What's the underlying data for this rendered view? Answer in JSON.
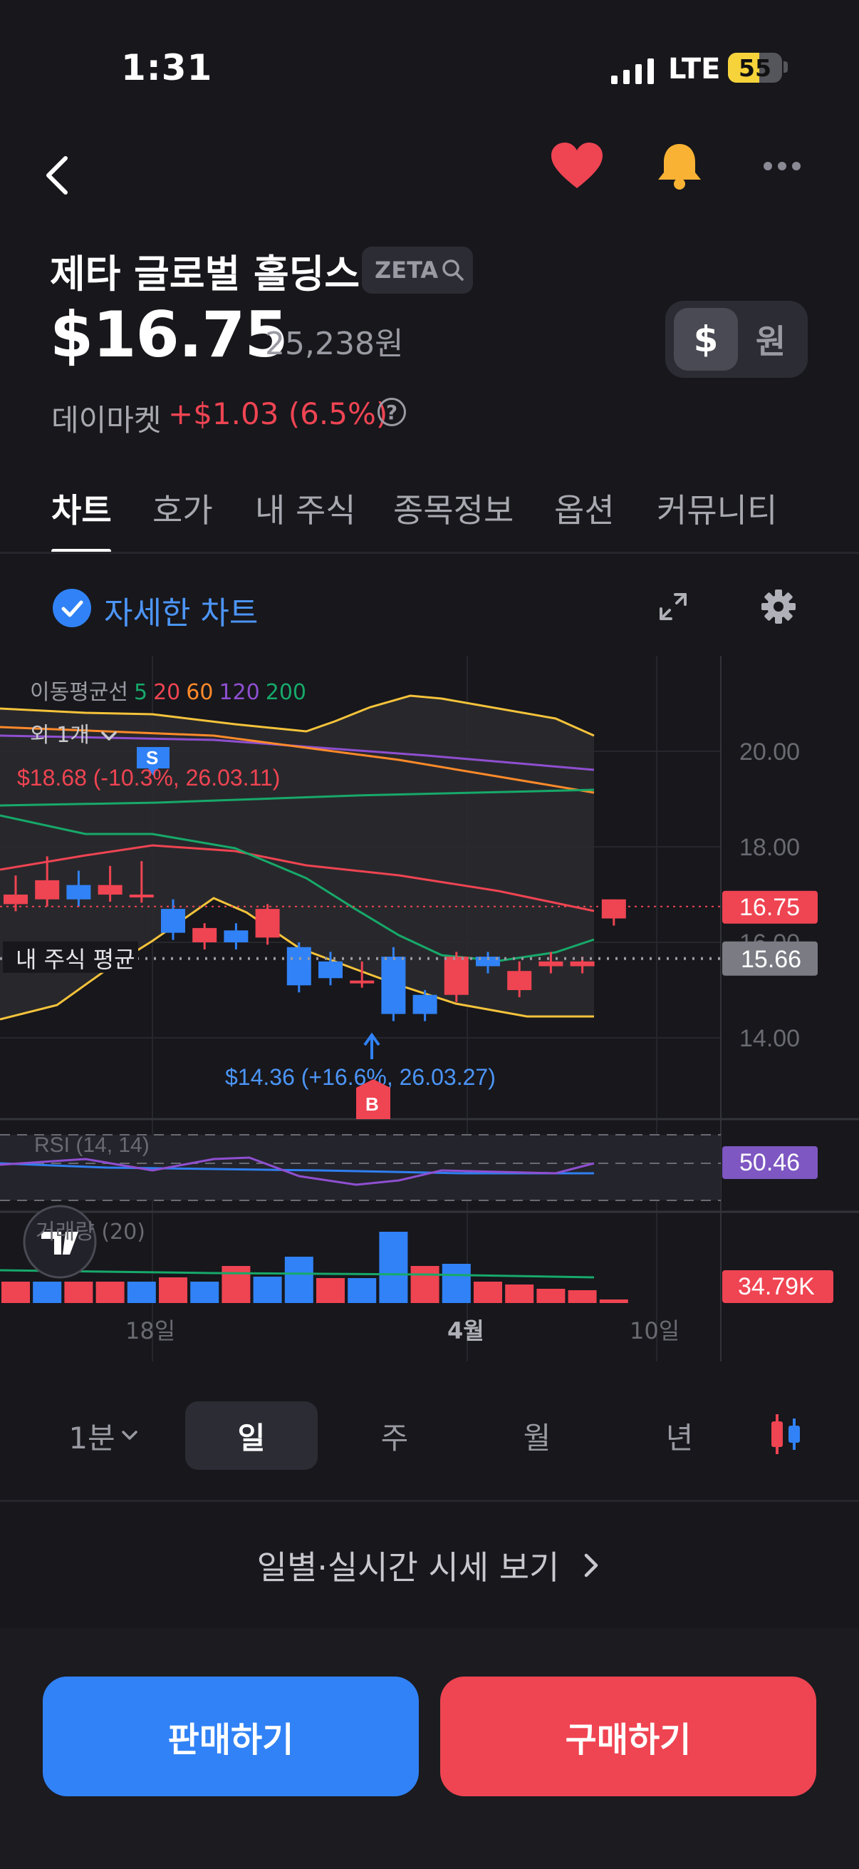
{
  "status_bar": {
    "time": "1:31",
    "network": "LTE",
    "battery": "55"
  },
  "stock": {
    "name": "제타 글로벌 홀딩스",
    "ticker": "ZETA",
    "price": "$16.75",
    "price_krw": "25,238원",
    "currency_usd": "$",
    "currency_krw": "원",
    "market_label": "데이마켓",
    "change": "+$1.03 (6.5%)",
    "help": "?"
  },
  "tabs": [
    "차트",
    "호가",
    "내 주식",
    "종목정보",
    "옵션",
    "커뮤니티"
  ],
  "chart_options": {
    "detail_label": "자세한 차트"
  },
  "chart": {
    "ma_legend": {
      "label": "이동평균선",
      "periods": [
        "5",
        "20",
        "60",
        "120",
        "200"
      ]
    },
    "extra_indicators": "외 1개",
    "marker_s": "S",
    "marker_b": "B",
    "high_annotation": "$18.68 (-10.3%, 26.03.11)",
    "low_annotation": "$14.36 (+16.6%, 26.03.27)",
    "avg_label": "내 주식 평균",
    "rsi_label": "RSI (14, 14)",
    "volume_label": "거래량 (20)",
    "y_ticks": [
      "20.00",
      "18.00",
      "16.00",
      "14.00"
    ],
    "x_ticks": [
      "18일",
      "4월",
      "10일"
    ],
    "current_price_tag": "16.75",
    "avg_price_tag": "15.66",
    "rsi_value": "50.46",
    "volume_value": "34.79K"
  },
  "chart_data": {
    "type": "candlestick",
    "y_range": [
      13.0,
      21.5
    ],
    "candles": [
      {
        "o": 17.0,
        "h": 17.4,
        "c": 16.8,
        "up": false
      },
      {
        "o": 17.3,
        "h": 17.8,
        "c": 16.9,
        "up": false
      },
      {
        "o": 16.9,
        "h": 17.5,
        "c": 17.2,
        "up": true
      },
      {
        "o": 17.2,
        "h": 17.6,
        "c": 17.0,
        "up": false
      },
      {
        "o": 17.0,
        "h": 17.7,
        "c": 16.98,
        "up": false
      },
      {
        "o": 16.7,
        "h": 16.9,
        "c": 16.2,
        "up": true
      },
      {
        "o": 16.3,
        "h": 16.4,
        "c": 16.0,
        "up": false
      },
      {
        "o": 16.25,
        "h": 16.4,
        "c": 16.0,
        "up": true
      },
      {
        "o": 16.7,
        "h": 16.8,
        "c": 16.1,
        "up": false
      },
      {
        "o": 15.9,
        "h": 16.0,
        "c": 15.1,
        "up": true
      },
      {
        "o": 15.6,
        "h": 15.8,
        "c": 15.25,
        "up": true
      },
      {
        "o": 15.2,
        "h": 15.6,
        "c": 15.2,
        "up": false
      },
      {
        "o": 15.7,
        "h": 15.9,
        "c": 14.5,
        "up": true
      },
      {
        "o": 14.9,
        "h": 15.0,
        "c": 14.5,
        "up": true
      },
      {
        "o": 15.7,
        "h": 15.8,
        "c": 14.9,
        "up": false
      },
      {
        "o": 15.5,
        "h": 15.8,
        "c": 15.7,
        "up": true
      },
      {
        "o": 15.4,
        "h": 15.6,
        "c": 15.0,
        "up": false
      },
      {
        "o": 15.6,
        "h": 15.8,
        "c": 15.5,
        "up": false
      },
      {
        "o": 15.6,
        "h": 15.7,
        "c": 15.5,
        "up": false
      },
      {
        "o": 16.9,
        "h": 16.9,
        "c": 16.5,
        "up": false
      }
    ],
    "current_price": 16.75,
    "avg_price": 15.66,
    "rsi": 50.46,
    "volume_series": [
      0.3,
      0.3,
      0.3,
      0.3,
      0.3,
      0.36,
      0.3,
      0.52,
      0.37,
      0.65,
      0.35,
      0.35,
      1.0,
      0.52,
      0.55,
      0.3,
      0.26,
      0.2,
      0.18,
      0.05
    ],
    "volume_up": [
      false,
      true,
      false,
      false,
      true,
      false,
      true,
      false,
      true,
      true,
      false,
      true,
      true,
      false,
      true,
      false,
      false,
      false,
      false,
      false
    ]
  },
  "periods": [
    "1분",
    "일",
    "주",
    "월",
    "년"
  ],
  "daily_link": "일별·실시간 시세 보기",
  "actions": {
    "sell": "판매하기",
    "buy": "구매하기"
  }
}
